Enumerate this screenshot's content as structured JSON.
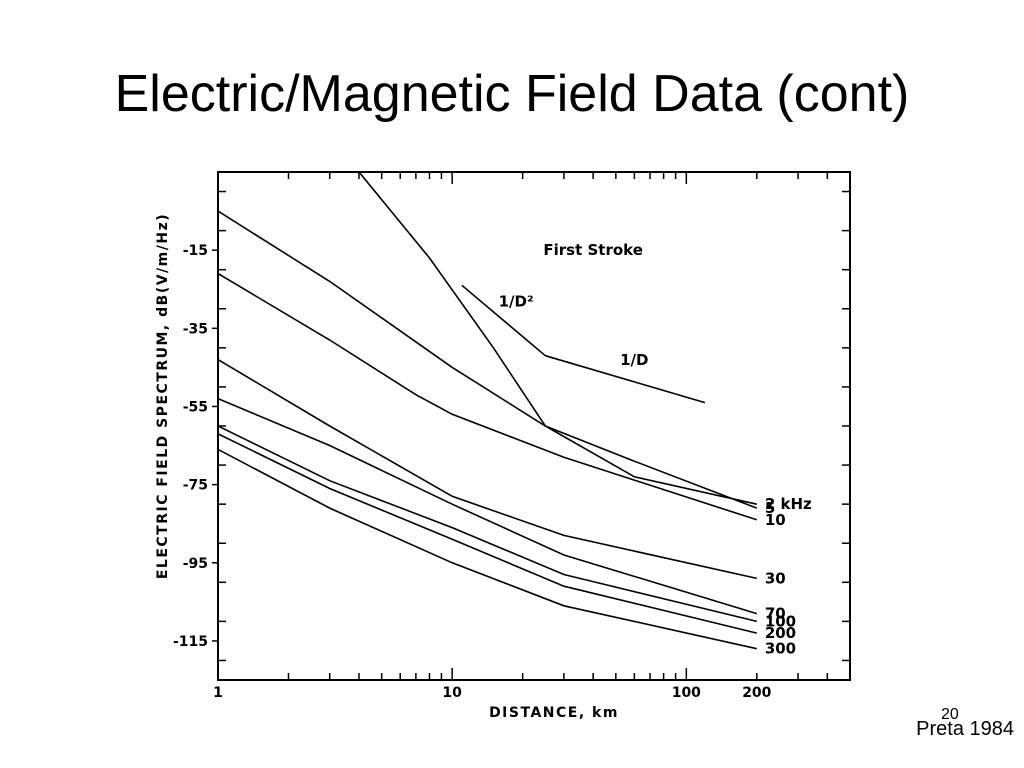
{
  "slide": {
    "title": "Electric/Magnetic Field Data (cont)",
    "page_number": "20",
    "citation": "Preta 1984"
  },
  "chart_data": {
    "type": "line",
    "x_scale": "log",
    "xlim": [
      1,
      500
    ],
    "ylim": [
      -125,
      5
    ],
    "xlabel": "DISTANCE, km",
    "ylabel": "ELECTRIC FIELD SPECTRUM,  dB(V/m/Hz)",
    "x_ticks": [
      {
        "value": 1,
        "label": "1"
      },
      {
        "value": 10,
        "label": "10"
      },
      {
        "value": 100,
        "label": "100"
      },
      {
        "value": 200,
        "label": "200"
      }
    ],
    "y_ticks": [
      {
        "value": -15,
        "label": "-15"
      },
      {
        "value": -35,
        "label": "-35"
      },
      {
        "value": -55,
        "label": "-55"
      },
      {
        "value": -75,
        "label": "-75"
      },
      {
        "value": -95,
        "label": "-95"
      },
      {
        "value": -115,
        "label": "-115"
      }
    ],
    "annotation": "First Stroke",
    "reference_lines": [
      {
        "label": "1/D²",
        "points": [
          [
            11,
            -24
          ],
          [
            25,
            -42
          ]
        ]
      },
      {
        "label": "1/D",
        "points": [
          [
            25,
            -42
          ],
          [
            120,
            -54
          ]
        ]
      }
    ],
    "series": [
      {
        "name": "2 kHz",
        "points": [
          [
            4,
            5
          ],
          [
            8,
            -17
          ],
          [
            15,
            -40
          ],
          [
            25,
            -60
          ],
          [
            60,
            -73
          ],
          [
            200,
            -80
          ]
        ]
      },
      {
        "name": "5",
        "points": [
          [
            1,
            -5
          ],
          [
            3,
            -23
          ],
          [
            10,
            -45
          ],
          [
            25,
            -60
          ],
          [
            60,
            -69
          ],
          [
            200,
            -81
          ]
        ]
      },
      {
        "name": "10",
        "points": [
          [
            1,
            -21
          ],
          [
            3,
            -38
          ],
          [
            7,
            -52
          ],
          [
            10,
            -57
          ],
          [
            30,
            -68
          ],
          [
            200,
            -84
          ]
        ]
      },
      {
        "name": "30",
        "points": [
          [
            1,
            -43
          ],
          [
            3,
            -60
          ],
          [
            10,
            -78
          ],
          [
            30,
            -88
          ],
          [
            200,
            -99
          ]
        ]
      },
      {
        "name": "70",
        "points": [
          [
            1,
            -53
          ],
          [
            3,
            -65
          ],
          [
            10,
            -80
          ],
          [
            30,
            -93
          ],
          [
            200,
            -108
          ]
        ]
      },
      {
        "name": "100",
        "points": [
          [
            1,
            -60
          ],
          [
            3,
            -74
          ],
          [
            10,
            -86
          ],
          [
            30,
            -98
          ],
          [
            200,
            -110
          ]
        ]
      },
      {
        "name": "200",
        "points": [
          [
            1,
            -62
          ],
          [
            3,
            -76
          ],
          [
            10,
            -89
          ],
          [
            30,
            -101
          ],
          [
            200,
            -113
          ]
        ]
      },
      {
        "name": "300",
        "points": [
          [
            1,
            -66
          ],
          [
            3,
            -81
          ],
          [
            10,
            -95
          ],
          [
            30,
            -106
          ],
          [
            200,
            -117
          ]
        ]
      }
    ]
  }
}
